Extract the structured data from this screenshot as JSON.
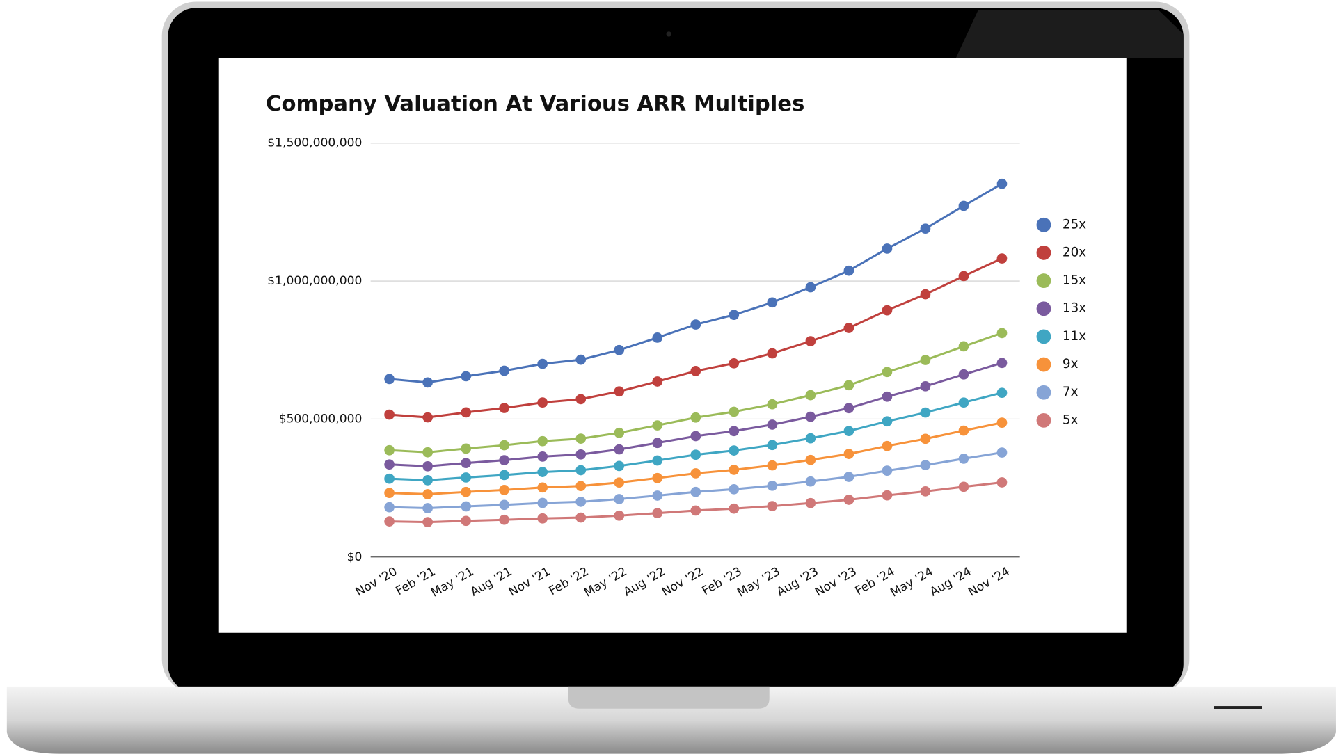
{
  "chart_data": {
    "type": "line",
    "title": "Company Valuation At Various ARR Multiples",
    "categories": [
      "Nov '20",
      "Feb '21",
      "May '21",
      "Aug '21",
      "Nov '21",
      "Feb '22",
      "May '22",
      "Aug '22",
      "Nov '22",
      "Feb '23",
      "May '23",
      "Aug '23",
      "Nov '23",
      "Feb '24",
      "May '24",
      "Aug '24",
      "Nov '24"
    ],
    "ylim": [
      0,
      1500000000
    ],
    "yticks": [
      {
        "value": 0,
        "label": "$0"
      },
      {
        "value": 500000000,
        "label": "$500,000,000"
      },
      {
        "value": 1000000000,
        "label": "$1,000,000,000"
      },
      {
        "value": 1500000000,
        "label": "$1,500,000,000"
      }
    ],
    "grid": true,
    "legend": "right",
    "series": [
      {
        "name": "25x",
        "color": "#4a72b8",
        "values": [
          645000000,
          632500000,
          655000000,
          675000000,
          700000000,
          715000000,
          750000000,
          795000000,
          842500000,
          877500000,
          922500000,
          977500000,
          1037500000,
          1117500000,
          1190000000,
          1272500000,
          1352500000
        ]
      },
      {
        "name": "20x",
        "color": "#c0403d",
        "values": [
          516000000,
          506000000,
          524000000,
          540000000,
          560000000,
          572000000,
          600000000,
          636000000,
          674000000,
          702000000,
          738000000,
          782000000,
          830000000,
          894000000,
          952000000,
          1018000000,
          1082000000
        ]
      },
      {
        "name": "15x",
        "color": "#9bbb59",
        "values": [
          387000000,
          379500000,
          393000000,
          405000000,
          420000000,
          429000000,
          450000000,
          477000000,
          505500000,
          526500000,
          553500000,
          586500000,
          622500000,
          670500000,
          714000000,
          763500000,
          811500000
        ]
      },
      {
        "name": "13x",
        "color": "#7a5a9e",
        "values": [
          335400000,
          328900000,
          340600000,
          351000000,
          364000000,
          371800000,
          390000000,
          413400000,
          438100000,
          456300000,
          479700000,
          508300000,
          539500000,
          581100000,
          618800000,
          661700000,
          703300000
        ]
      },
      {
        "name": "11x",
        "color": "#3fa6c3",
        "values": [
          283800000,
          278300000,
          288200000,
          297000000,
          308000000,
          314600000,
          330000000,
          349800000,
          370700000,
          386100000,
          405900000,
          430100000,
          456500000,
          491700000,
          523600000,
          559900000,
          595100000
        ]
      },
      {
        "name": "9x",
        "color": "#f7923a",
        "values": [
          232200000,
          227700000,
          235800000,
          243000000,
          252000000,
          257400000,
          270000000,
          286200000,
          303300000,
          315900000,
          332100000,
          351900000,
          373500000,
          402300000,
          428400000,
          458100000,
          486900000
        ]
      },
      {
        "name": "7x",
        "color": "#86a4d6",
        "values": [
          180600000,
          177100000,
          183400000,
          189000000,
          196000000,
          200200000,
          210000000,
          222600000,
          235900000,
          245700000,
          258300000,
          273700000,
          290500000,
          312900000,
          333200000,
          356300000,
          378700000
        ]
      },
      {
        "name": "5x",
        "color": "#d07878",
        "values": [
          129000000,
          126500000,
          131000000,
          135000000,
          140000000,
          143000000,
          150000000,
          159000000,
          168500000,
          175500000,
          184500000,
          195500000,
          207500000,
          223500000,
          238000000,
          254500000,
          270500000
        ]
      }
    ]
  }
}
